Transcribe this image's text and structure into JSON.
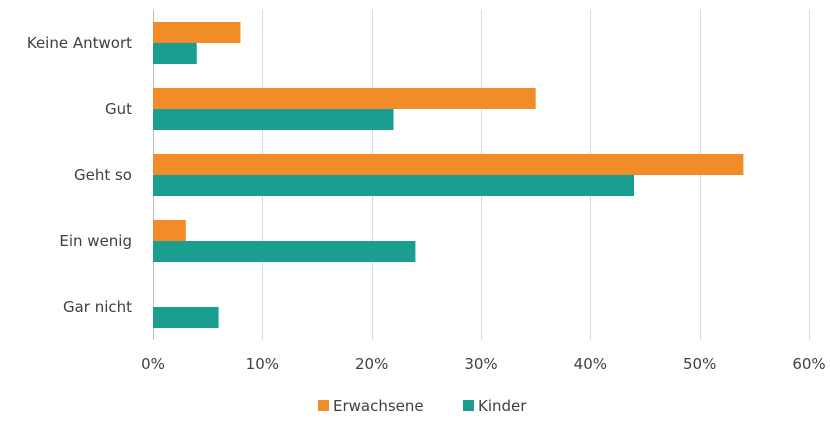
{
  "chart_data": {
    "type": "bar",
    "orientation": "horizontal",
    "categories": [
      "Keine Antwort",
      "Gut",
      "Geht so",
      "Ein wenig",
      "Gar nicht"
    ],
    "series": [
      {
        "name": "Erwachsene",
        "color": "#f28c28",
        "values": [
          8,
          35,
          54,
          3,
          0
        ]
      },
      {
        "name": "Kinder",
        "color": "#1a9e8f",
        "values": [
          4,
          22,
          44,
          24,
          6
        ]
      }
    ],
    "xlim": [
      0,
      60
    ],
    "xticks": [
      "0%",
      "10%",
      "20%",
      "30%",
      "40%",
      "50%",
      "60%"
    ],
    "grid": true,
    "legend": "bottom"
  }
}
